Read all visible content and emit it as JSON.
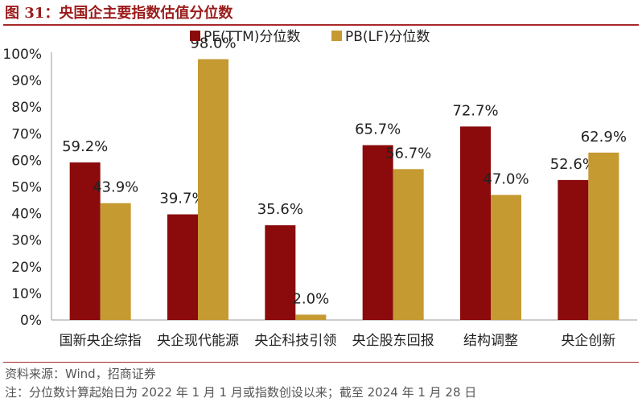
{
  "figure_title": "图 31：央国企主要指数估值分位数",
  "source": "资料来源：Wind，招商证券",
  "note": "注：分位数计算起始日为 2022 年 1 月 1 月或指数创设以来；截至 2024 年 1 月 28 日",
  "colors": {
    "pe": "#8b0a0b",
    "pb": "#c49a31",
    "title": "#9b1b1b"
  },
  "chart_data": {
    "type": "bar",
    "title": "",
    "categories": [
      "国新央企综指",
      "央企现代能源",
      "央企科技引领",
      "央企股东回报",
      "结构调整",
      "央企创新"
    ],
    "series": [
      {
        "name": "PE(TTM)分位数",
        "values": [
          59.2,
          39.7,
          35.6,
          65.7,
          72.7,
          52.6
        ],
        "labels": [
          "59.2%",
          "39.7%",
          "35.6%",
          "65.7%",
          "72.7%",
          "52.6%"
        ]
      },
      {
        "name": "PB(LF)分位数",
        "values": [
          43.9,
          98.0,
          2.0,
          56.7,
          47.0,
          62.9
        ],
        "labels": [
          "43.9%",
          "98.0%",
          "2.0%",
          "56.7%",
          "47.0%",
          "62.9%"
        ]
      }
    ],
    "yticks": [
      "0%",
      "10%",
      "20%",
      "30%",
      "40%",
      "50%",
      "60%",
      "70%",
      "80%",
      "90%",
      "100%"
    ],
    "ylim": [
      0,
      100
    ],
    "xlabel": "",
    "ylabel": "",
    "grid": false,
    "legend_position": "top"
  }
}
